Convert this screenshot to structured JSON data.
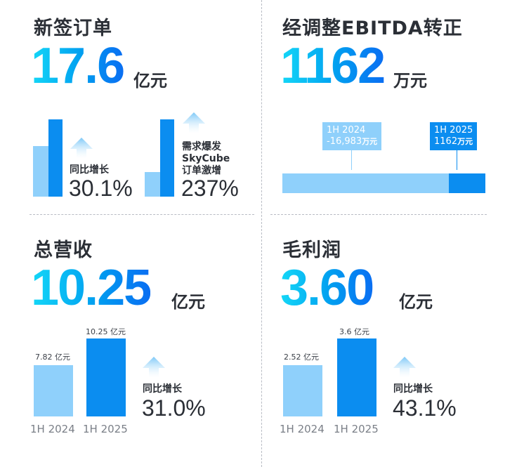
{
  "q1": {
    "title": "新签订单",
    "value": "17.6",
    "unit": "亿元",
    "growth_label": "同比增长",
    "growth_value": "30.1%",
    "skycube_label_line1": "需求爆发",
    "skycube_label_line2": "SkyCube",
    "skycube_label_line3": "订单激增",
    "skycube_value": "237%"
  },
  "q2": {
    "title": "经调整EBITDA转正",
    "value": "1162",
    "unit": "万元",
    "callout_2024_period": "1H 2024",
    "callout_2024_value": "-16,983",
    "callout_2024_unit": "万元",
    "callout_2025_period": "1H 2025",
    "callout_2025_value": "1162",
    "callout_2025_unit": "万元",
    "progress_share_2024": 0.82
  },
  "q3": {
    "title": "总营收",
    "value": "10.25",
    "unit": "亿元",
    "bar1_label": "7.82 亿元",
    "bar2_label": "10.25 亿元",
    "axis1": "1H 2024",
    "axis2": "1H 2025",
    "growth_label": "同比增长",
    "growth_value": "31.0%"
  },
  "q4": {
    "title": "毛利润",
    "value": "3.60",
    "unit": "亿元",
    "bar1_label": "2.52 亿元",
    "bar2_label": "3.6 亿元",
    "axis1": "1H 2024",
    "axis2": "1H 2025",
    "growth_label": "同比增长",
    "growth_value": "43.1%"
  },
  "colors": {
    "bar_light": "#8fd0fb",
    "bar_dark": "#0b8df0",
    "number_gradient_start": "#14d7f7",
    "number_gradient_end": "#0a6ef2"
  },
  "icons": {
    "growth": "up-arrow-icon"
  }
}
